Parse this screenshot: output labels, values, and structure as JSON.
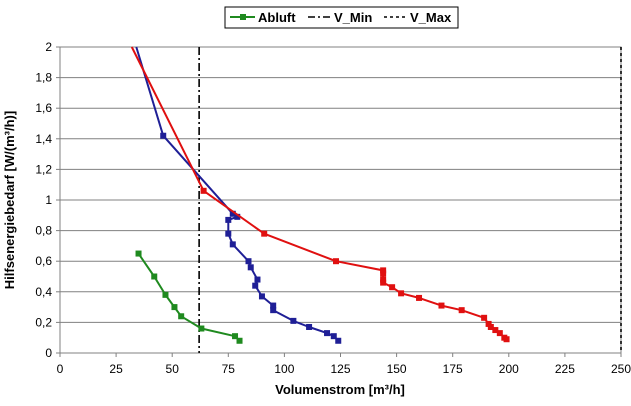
{
  "chart_data": {
    "type": "line",
    "title": "",
    "xlabel": "Volumenstrom [m³/h]",
    "ylabel": "Hilfsenergiebedarf [W/(m³/h)]",
    "xlim": [
      0,
      250
    ],
    "ylim": [
      0,
      2
    ],
    "x_ticks": [
      "0",
      "25",
      "50",
      "75",
      "100",
      "125",
      "150",
      "175",
      "200",
      "225",
      "250"
    ],
    "y_ticks": [
      "0",
      "0,2",
      "0,4",
      "0,6",
      "0,8",
      "1",
      "1,2",
      "1,4",
      "1,6",
      "1,8",
      "2"
    ],
    "grid": true,
    "legend_position": "top",
    "legend": [
      {
        "label": "Abluft",
        "color": "#1f8a1f",
        "style": "solid-square-marker"
      },
      {
        "label": "V_Min",
        "color": "#000000",
        "style": "dash-dot"
      },
      {
        "label": "V_Max",
        "color": "#000000",
        "style": "dotted"
      }
    ],
    "vlines": [
      {
        "name": "V_Min",
        "x": 62,
        "style": "dash-dot",
        "color": "#000000"
      },
      {
        "name": "V_Max",
        "x": 250,
        "style": "dotted",
        "color": "#000000"
      }
    ],
    "series": [
      {
        "name": "Abluft",
        "color": "#1f8a1f",
        "points": [
          [
            35,
            0.65
          ],
          [
            42,
            0.5
          ],
          [
            47,
            0.38
          ],
          [
            51,
            0.3
          ],
          [
            54,
            0.24
          ],
          [
            63,
            0.16
          ],
          [
            78,
            0.11
          ],
          [
            80,
            0.08
          ]
        ]
      },
      {
        "color": "#1f1f96",
        "points": [
          [
            34,
            2.0
          ],
          [
            46,
            1.42
          ],
          [
            77,
            0.91
          ],
          [
            79,
            0.89
          ],
          [
            75,
            0.87
          ],
          [
            75,
            0.78
          ],
          [
            77,
            0.71
          ],
          [
            84,
            0.6
          ],
          [
            85,
            0.56
          ],
          [
            88,
            0.48
          ],
          [
            87,
            0.44
          ],
          [
            90,
            0.37
          ],
          [
            95,
            0.31
          ],
          [
            95,
            0.28
          ],
          [
            104,
            0.21
          ],
          [
            111,
            0.17
          ],
          [
            119,
            0.13
          ],
          [
            122,
            0.11
          ],
          [
            124,
            0.08
          ]
        ]
      },
      {
        "color": "#e01010",
        "points": [
          [
            32,
            2.0
          ],
          [
            64,
            1.06
          ],
          [
            91,
            0.78
          ],
          [
            123,
            0.6
          ],
          [
            144,
            0.54
          ],
          [
            144,
            0.52
          ],
          [
            144,
            0.48
          ],
          [
            144,
            0.46
          ],
          [
            148,
            0.43
          ],
          [
            152,
            0.39
          ],
          [
            160,
            0.36
          ],
          [
            170,
            0.31
          ],
          [
            179,
            0.28
          ],
          [
            189,
            0.23
          ],
          [
            191,
            0.19
          ],
          [
            192,
            0.17
          ],
          [
            194,
            0.15
          ],
          [
            196,
            0.13
          ],
          [
            198,
            0.1
          ],
          [
            199,
            0.09
          ]
        ]
      }
    ]
  }
}
